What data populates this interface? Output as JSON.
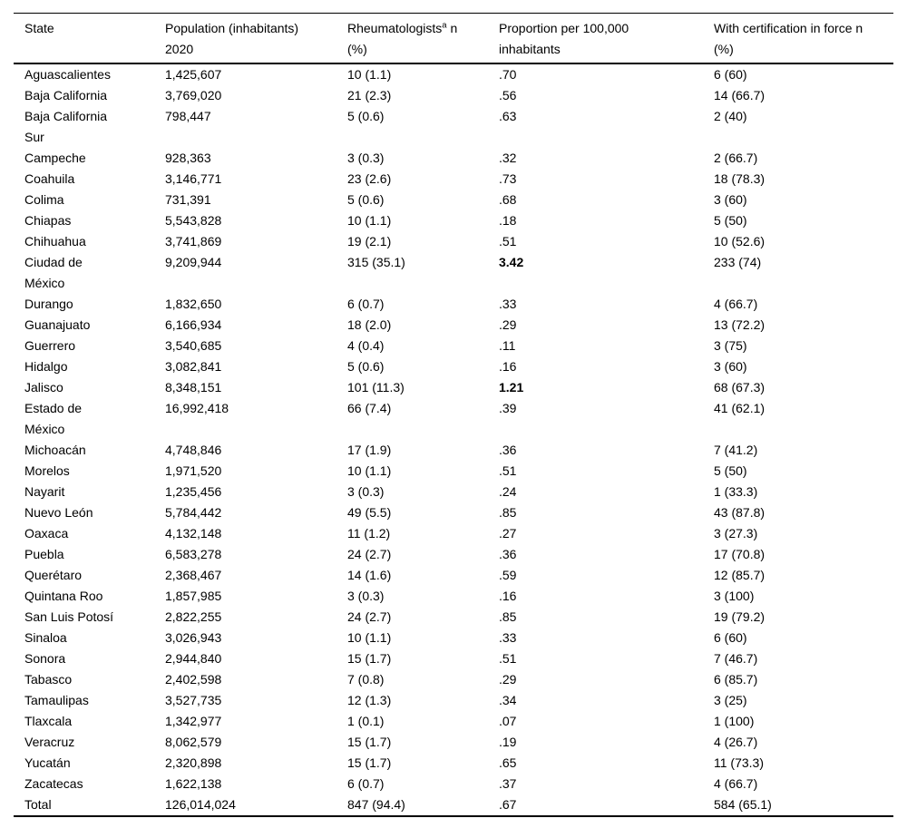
{
  "colors": {
    "background": "#ffffff",
    "text": "#000000",
    "rule": "#000000"
  },
  "table": {
    "columns": [
      {
        "line1": "State",
        "line2": ""
      },
      {
        "line1": "Population (inhabitants)",
        "line2": "2020"
      },
      {
        "line1_pre": "Rheumatologists",
        "sup": "a",
        "line1_post": " n",
        "line2": "(%)"
      },
      {
        "line1": "Proportion per 100,000",
        "line2": "inhabitants"
      },
      {
        "line1": "With certification in force n",
        "line2": "(%)"
      }
    ],
    "rows": [
      {
        "state": "Aguascalientes",
        "population": "1,425,607",
        "rheumatologists": "10 (1.1)",
        "proportion": ".70",
        "certification": "6 (60)"
      },
      {
        "state": "Baja California",
        "population": "3,769,020",
        "rheumatologists": "21 (2.3)",
        "proportion": ".56",
        "certification": "14 (66.7)"
      },
      {
        "state": "Baja California Sur",
        "population": "798,447",
        "rheumatologists": "5 (0.6)",
        "proportion": ".63",
        "certification": "2 (40)"
      },
      {
        "state": "Campeche",
        "population": "928,363",
        "rheumatologists": "3 (0.3)",
        "proportion": ".32",
        "certification": "2 (66.7)"
      },
      {
        "state": "Coahuila",
        "population": "3,146,771",
        "rheumatologists": "23 (2.6)",
        "proportion": ".73",
        "certification": "18 (78.3)"
      },
      {
        "state": "Colima",
        "population": "731,391",
        "rheumatologists": "5 (0.6)",
        "proportion": ".68",
        "certification": "3 (60)"
      },
      {
        "state": "Chiapas",
        "population": "5,543,828",
        "rheumatologists": "10 (1.1)",
        "proportion": ".18",
        "certification": "5 (50)"
      },
      {
        "state": "Chihuahua",
        "population": "3,741,869",
        "rheumatologists": "19 (2.1)",
        "proportion": ".51",
        "certification": "10 (52.6)"
      },
      {
        "state": "Ciudad de México",
        "population": "9,209,944",
        "rheumatologists": "315 (35.1)",
        "proportion": "3.42",
        "proportion_bold": true,
        "certification": "233 (74)"
      },
      {
        "state": "Durango",
        "population": "1,832,650",
        "rheumatologists": "6 (0.7)",
        "proportion": ".33",
        "certification": "4 (66.7)"
      },
      {
        "state": "Guanajuato",
        "population": "6,166,934",
        "rheumatologists": "18 (2.0)",
        "proportion": ".29",
        "certification": "13 (72.2)"
      },
      {
        "state": "Guerrero",
        "population": "3,540,685",
        "rheumatologists": "4 (0.4)",
        "proportion": ".11",
        "certification": "3 (75)"
      },
      {
        "state": "Hidalgo",
        "population": "3,082,841",
        "rheumatologists": "5 (0.6)",
        "proportion": ".16",
        "certification": "3 (60)"
      },
      {
        "state": "Jalisco",
        "population": "8,348,151",
        "rheumatologists": "101 (11.3)",
        "proportion": "1.21",
        "proportion_bold": true,
        "certification": "68 (67.3)"
      },
      {
        "state": "Estado de México",
        "population": "16,992,418",
        "rheumatologists": "66 (7.4)",
        "proportion": ".39",
        "certification": "41 (62.1)"
      },
      {
        "state": "Michoacán",
        "population": "4,748,846",
        "rheumatologists": "17 (1.9)",
        "proportion": ".36",
        "certification": "7 (41.2)"
      },
      {
        "state": "Morelos",
        "population": "1,971,520",
        "rheumatologists": "10 (1.1)",
        "proportion": ".51",
        "certification": "5 (50)"
      },
      {
        "state": "Nayarit",
        "population": "1,235,456",
        "rheumatologists": "3 (0.3)",
        "proportion": ".24",
        "certification": "1 (33.3)"
      },
      {
        "state": "Nuevo León",
        "population": "5,784,442",
        "rheumatologists": "49 (5.5)",
        "proportion": ".85",
        "certification": "43 (87.8)"
      },
      {
        "state": "Oaxaca",
        "population": "4,132,148",
        "rheumatologists": "11 (1.2)",
        "proportion": ".27",
        "certification": "3 (27.3)"
      },
      {
        "state": "Puebla",
        "population": "6,583,278",
        "rheumatologists": "24 (2.7)",
        "proportion": ".36",
        "certification": "17 (70.8)"
      },
      {
        "state": "Querétaro",
        "population": "2,368,467",
        "rheumatologists": "14 (1.6)",
        "proportion": ".59",
        "certification": "12 (85.7)"
      },
      {
        "state": "Quintana Roo",
        "population": "1,857,985",
        "rheumatologists": "3 (0.3)",
        "proportion": ".16",
        "certification": "3 (100)"
      },
      {
        "state": "San Luis Potosí",
        "population": "2,822,255",
        "rheumatologists": "24 (2.7)",
        "proportion": ".85",
        "certification": "19 (79.2)"
      },
      {
        "state": "Sinaloa",
        "population": "3,026,943",
        "rheumatologists": "10 (1.1)",
        "proportion": ".33",
        "certification": "6 (60)"
      },
      {
        "state": "Sonora",
        "population": "2,944,840",
        "rheumatologists": "15 (1.7)",
        "proportion": ".51",
        "certification": "7 (46.7)"
      },
      {
        "state": "Tabasco",
        "population": "2,402,598",
        "rheumatologists": "7 (0.8)",
        "proportion": ".29",
        "certification": "6 (85.7)"
      },
      {
        "state": "Tamaulipas",
        "population": "3,527,735",
        "rheumatologists": "12 (1.3)",
        "proportion": ".34",
        "certification": "3 (25)"
      },
      {
        "state": "Tlaxcala",
        "population": "1,342,977",
        "rheumatologists": "1 (0.1)",
        "proportion": ".07",
        "certification": "1 (100)"
      },
      {
        "state": "Veracruz",
        "population": "8,062,579",
        "rheumatologists": "15 (1.7)",
        "proportion": ".19",
        "certification": "4 (26.7)"
      },
      {
        "state": "Yucatán",
        "population": "2,320,898",
        "rheumatologists": "15 (1.7)",
        "proportion": ".65",
        "certification": "11 (73.3)"
      },
      {
        "state": "Zacatecas",
        "population": "1,622,138",
        "rheumatologists": "6 (0.7)",
        "proportion": ".37",
        "certification": "4 (66.7)"
      },
      {
        "state": "Total",
        "population": "126,014,024",
        "rheumatologists": "847 (94.4)",
        "proportion": ".67",
        "certification": "584 (65.1)"
      }
    ]
  }
}
